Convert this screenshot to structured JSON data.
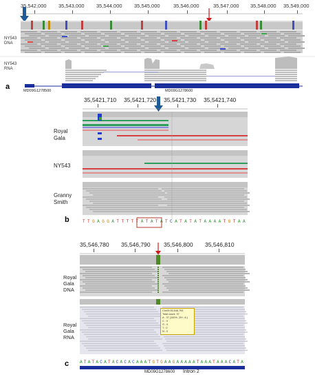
{
  "panel_a": {
    "letter": "a",
    "coords": [
      "35,542,000",
      "35,543,000",
      "35,544,000",
      "35,545,000",
      "35,546,000",
      "35,547,000",
      "35,548,000",
      "35,549,000"
    ],
    "track_dna": "NY543\nDNA",
    "track_rna": "NY543\nRNA",
    "gene_left": "MD09G1278500",
    "gene_right": "MD09G1278600"
  },
  "panel_b": {
    "letter": "b",
    "coords": [
      "35,5421,710",
      "35,5421,720",
      "35,5421,730",
      "35,5421,740"
    ],
    "tracks": [
      "Royal\nGala",
      "NY543",
      "Granny\nSmith"
    ],
    "sequence": "TTGAGGATTTTTATATATCATATATAAAATGTAA"
  },
  "panel_c": {
    "letter": "c",
    "coords": [
      "35,546,780",
      "35,546,790",
      "35,546,800",
      "35,546,810"
    ],
    "track_dna": "Royal\nGala\nDNA",
    "track_rna": "Royal\nGala\nRNA",
    "sequence": "ATATACATACACACAAATGTGAAGAAAAATAAATAAACATA",
    "gene": "MD09G1278600",
    "intron": "Intron 2",
    "tooltip": [
      "Chr09:35,546,793",
      "Total count: 37",
      "A : 37 (100%, 29+, 8-)",
      "C : 0",
      "G : 0",
      "T : 0",
      "N : 0"
    ]
  },
  "colors": {
    "arrow_blue": "#1f5c97",
    "arrow_red": "#d11a1a",
    "gene_blue": "#1a2e9c",
    "highlight_box": "#b03a2e"
  }
}
